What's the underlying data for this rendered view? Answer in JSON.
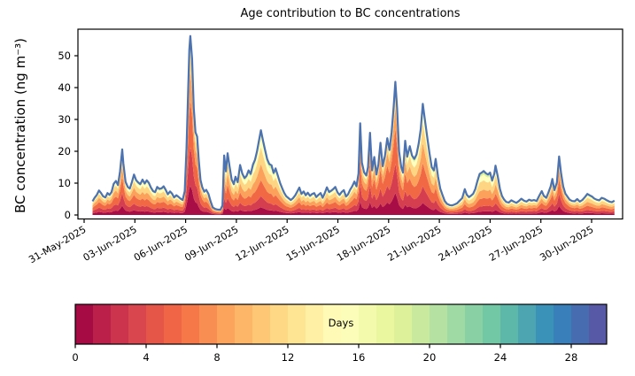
{
  "chart_data": {
    "type": "area",
    "title": "Age contribution to BC concentrations",
    "xlabel": "",
    "ylabel": "BC concentration (ng m⁻³)",
    "x_axis": {
      "unit": "days since 31-May-2025 00:00",
      "range_days": [
        -0.37,
        31.83
      ],
      "ticks": [
        {
          "day": 0,
          "label": "31-May-2025"
        },
        {
          "day": 3,
          "label": "03-Jun-2025"
        },
        {
          "day": 6,
          "label": "06-Jun-2025"
        },
        {
          "day": 9,
          "label": "09-Jun-2025"
        },
        {
          "day": 12,
          "label": "12-Jun-2025"
        },
        {
          "day": 15,
          "label": "15-Jun-2025"
        },
        {
          "day": 18,
          "label": "18-Jun-2025"
        },
        {
          "day": 21,
          "label": "21-Jun-2025"
        },
        {
          "day": 24,
          "label": "24-Jun-2025"
        },
        {
          "day": 27,
          "label": "27-Jun-2025"
        },
        {
          "day": 30,
          "label": "30-Jun-2025"
        }
      ]
    },
    "y_axis": {
      "ticks": [
        0,
        10,
        20,
        30,
        40,
        50
      ],
      "ylim": [
        -1.25,
        58.3
      ],
      "grid": false
    },
    "total_line": {
      "name": "total BC concentration",
      "color": "#4c72b0",
      "points": [
        [
          0.5,
          4.3
        ],
        [
          0.62,
          5.4
        ],
        [
          0.75,
          6.3
        ],
        [
          0.88,
          7.7
        ],
        [
          1.0,
          6.9
        ],
        [
          1.12,
          5.9
        ],
        [
          1.25,
          5.5
        ],
        [
          1.38,
          6.9
        ],
        [
          1.5,
          6.3
        ],
        [
          1.62,
          7.2
        ],
        [
          1.75,
          9.8
        ],
        [
          1.88,
          10.7
        ],
        [
          2.0,
          9.4
        ],
        [
          2.12,
          13.6
        ],
        [
          2.25,
          20.6
        ],
        [
          2.32,
          16.2
        ],
        [
          2.45,
          10.4
        ],
        [
          2.58,
          8.8
        ],
        [
          2.7,
          8.3
        ],
        [
          2.82,
          10.3
        ],
        [
          2.95,
          12.7
        ],
        [
          3.08,
          10.9
        ],
        [
          3.2,
          10.2
        ],
        [
          3.32,
          9.7
        ],
        [
          3.45,
          11.1
        ],
        [
          3.58,
          9.9
        ],
        [
          3.7,
          10.9
        ],
        [
          3.82,
          10.1
        ],
        [
          3.95,
          8.6
        ],
        [
          4.08,
          7.5
        ],
        [
          4.2,
          7.2
        ],
        [
          4.32,
          8.8
        ],
        [
          4.45,
          8.2
        ],
        [
          4.58,
          8.4
        ],
        [
          4.7,
          9.0
        ],
        [
          4.82,
          7.9
        ],
        [
          4.95,
          6.5
        ],
        [
          5.08,
          7.4
        ],
        [
          5.2,
          6.7
        ],
        [
          5.32,
          5.5
        ],
        [
          5.45,
          6.2
        ],
        [
          5.58,
          5.7
        ],
        [
          5.7,
          5.1
        ],
        [
          5.82,
          4.7
        ],
        [
          5.95,
          7.5
        ],
        [
          6.05,
          21.0
        ],
        [
          6.15,
          39.5
        ],
        [
          6.22,
          52.0
        ],
        [
          6.28,
          56.2
        ],
        [
          6.38,
          49.0
        ],
        [
          6.48,
          33.5
        ],
        [
          6.58,
          26.0
        ],
        [
          6.68,
          24.6
        ],
        [
          6.78,
          17.0
        ],
        [
          6.88,
          11.0
        ],
        [
          6.98,
          8.8
        ],
        [
          7.1,
          7.3
        ],
        [
          7.22,
          7.9
        ],
        [
          7.35,
          6.6
        ],
        [
          7.48,
          4.2
        ],
        [
          7.6,
          2.4
        ],
        [
          7.75,
          1.9
        ],
        [
          7.9,
          1.7
        ],
        [
          8.05,
          1.6
        ],
        [
          8.18,
          3.0
        ],
        [
          8.28,
          18.7
        ],
        [
          8.38,
          13.7
        ],
        [
          8.48,
          19.4
        ],
        [
          8.6,
          15.1
        ],
        [
          8.72,
          11.1
        ],
        [
          8.85,
          9.7
        ],
        [
          8.95,
          12.0
        ],
        [
          9.08,
          10.3
        ],
        [
          9.22,
          15.7
        ],
        [
          9.35,
          13.0
        ],
        [
          9.48,
          11.6
        ],
        [
          9.6,
          12.3
        ],
        [
          9.72,
          14.0
        ],
        [
          9.85,
          12.9
        ],
        [
          9.98,
          15.8
        ],
        [
          10.1,
          17.3
        ],
        [
          10.22,
          20.0
        ],
        [
          10.35,
          23.8
        ],
        [
          10.45,
          26.6
        ],
        [
          10.58,
          23.2
        ],
        [
          10.7,
          20.3
        ],
        [
          10.82,
          17.5
        ],
        [
          10.95,
          16.0
        ],
        [
          11.08,
          15.6
        ],
        [
          11.2,
          13.2
        ],
        [
          11.32,
          14.6
        ],
        [
          11.45,
          12.4
        ],
        [
          11.58,
          10.1
        ],
        [
          11.7,
          8.5
        ],
        [
          11.82,
          7.0
        ],
        [
          11.95,
          5.9
        ],
        [
          12.08,
          5.3
        ],
        [
          12.22,
          4.7
        ],
        [
          12.35,
          5.3
        ],
        [
          12.48,
          6.2
        ],
        [
          12.6,
          7.4
        ],
        [
          12.72,
          8.6
        ],
        [
          12.85,
          6.6
        ],
        [
          12.98,
          7.4
        ],
        [
          13.1,
          6.2
        ],
        [
          13.22,
          7.0
        ],
        [
          13.35,
          6.0
        ],
        [
          13.48,
          6.6
        ],
        [
          13.6,
          6.9
        ],
        [
          13.72,
          5.6
        ],
        [
          13.85,
          6.3
        ],
        [
          13.98,
          6.9
        ],
        [
          14.1,
          5.4
        ],
        [
          14.22,
          6.8
        ],
        [
          14.35,
          8.7
        ],
        [
          14.48,
          7.2
        ],
        [
          14.6,
          7.6
        ],
        [
          14.72,
          8.1
        ],
        [
          14.85,
          8.8
        ],
        [
          14.98,
          7.1
        ],
        [
          15.1,
          6.3
        ],
        [
          15.22,
          7.2
        ],
        [
          15.35,
          7.8
        ],
        [
          15.48,
          5.8
        ],
        [
          15.6,
          6.5
        ],
        [
          15.72,
          7.9
        ],
        [
          15.85,
          9.0
        ],
        [
          15.98,
          10.5
        ],
        [
          16.1,
          9.0
        ],
        [
          16.22,
          13.0
        ],
        [
          16.32,
          28.8
        ],
        [
          16.42,
          16.5
        ],
        [
          16.55,
          13.4
        ],
        [
          16.68,
          12.4
        ],
        [
          16.78,
          15.0
        ],
        [
          16.9,
          25.8
        ],
        [
          17.02,
          14.0
        ],
        [
          17.15,
          18.2
        ],
        [
          17.28,
          12.7
        ],
        [
          17.4,
          16.0
        ],
        [
          17.52,
          22.7
        ],
        [
          17.65,
          15.3
        ],
        [
          17.78,
          18.5
        ],
        [
          17.92,
          24.1
        ],
        [
          18.05,
          20.4
        ],
        [
          18.18,
          26.0
        ],
        [
          18.3,
          34.0
        ],
        [
          18.4,
          41.8
        ],
        [
          18.5,
          33.5
        ],
        [
          18.62,
          20.0
        ],
        [
          18.75,
          15.0
        ],
        [
          18.85,
          13.3
        ],
        [
          18.98,
          23.3
        ],
        [
          19.1,
          18.3
        ],
        [
          19.25,
          21.6
        ],
        [
          19.38,
          18.7
        ],
        [
          19.52,
          17.6
        ],
        [
          19.65,
          19.0
        ],
        [
          19.78,
          22.5
        ],
        [
          19.9,
          27.0
        ],
        [
          20.02,
          34.9
        ],
        [
          20.15,
          29.6
        ],
        [
          20.28,
          24.7
        ],
        [
          20.42,
          19.3
        ],
        [
          20.55,
          15.0
        ],
        [
          20.68,
          14.0
        ],
        [
          20.78,
          17.6
        ],
        [
          20.92,
          12.1
        ],
        [
          21.05,
          8.3
        ],
        [
          21.18,
          6.4
        ],
        [
          21.32,
          4.4
        ],
        [
          21.45,
          3.5
        ],
        [
          21.6,
          3.1
        ],
        [
          21.75,
          3.0
        ],
        [
          21.9,
          3.3
        ],
        [
          22.05,
          3.7
        ],
        [
          22.2,
          4.5
        ],
        [
          22.35,
          5.3
        ],
        [
          22.5,
          8.1
        ],
        [
          22.62,
          6.4
        ],
        [
          22.75,
          5.6
        ],
        [
          22.88,
          6.1
        ],
        [
          23.0,
          6.7
        ],
        [
          23.12,
          8.1
        ],
        [
          23.25,
          10.7
        ],
        [
          23.38,
          12.9
        ],
        [
          23.5,
          13.3
        ],
        [
          23.62,
          13.8
        ],
        [
          23.75,
          13.1
        ],
        [
          23.88,
          12.7
        ],
        [
          24.0,
          13.3
        ],
        [
          24.12,
          10.8
        ],
        [
          24.25,
          13.0
        ],
        [
          24.32,
          15.5
        ],
        [
          24.45,
          12.2
        ],
        [
          24.58,
          8.2
        ],
        [
          24.7,
          6.0
        ],
        [
          24.82,
          4.9
        ],
        [
          24.95,
          4.1
        ],
        [
          25.1,
          3.9
        ],
        [
          25.25,
          4.6
        ],
        [
          25.4,
          4.2
        ],
        [
          25.55,
          3.8
        ],
        [
          25.7,
          4.4
        ],
        [
          25.85,
          5.1
        ],
        [
          26.0,
          4.5
        ],
        [
          26.15,
          4.2
        ],
        [
          26.3,
          4.8
        ],
        [
          26.45,
          4.5
        ],
        [
          26.6,
          4.7
        ],
        [
          26.75,
          4.4
        ],
        [
          26.9,
          6.0
        ],
        [
          27.05,
          7.5
        ],
        [
          27.18,
          6.0
        ],
        [
          27.32,
          5.4
        ],
        [
          27.45,
          7.1
        ],
        [
          27.58,
          9.0
        ],
        [
          27.68,
          11.3
        ],
        [
          27.8,
          7.8
        ],
        [
          27.95,
          10.2
        ],
        [
          28.08,
          18.4
        ],
        [
          28.2,
          13.0
        ],
        [
          28.32,
          9.0
        ],
        [
          28.45,
          6.7
        ],
        [
          28.58,
          5.7
        ],
        [
          28.7,
          4.8
        ],
        [
          28.85,
          4.4
        ],
        [
          29.0,
          4.3
        ],
        [
          29.15,
          5.0
        ],
        [
          29.3,
          4.2
        ],
        [
          29.45,
          4.7
        ],
        [
          29.6,
          5.6
        ],
        [
          29.75,
          6.6
        ],
        [
          29.88,
          6.2
        ],
        [
          30.02,
          5.8
        ],
        [
          30.15,
          5.2
        ],
        [
          30.3,
          4.8
        ],
        [
          30.45,
          4.6
        ],
        [
          30.6,
          5.4
        ],
        [
          30.75,
          5.1
        ],
        [
          30.9,
          4.6
        ],
        [
          31.05,
          4.2
        ],
        [
          31.2,
          4.0
        ],
        [
          31.35,
          4.5
        ]
      ]
    },
    "age_stack": {
      "description": "stacked fill under total line, colored by particle age (days), youngest at bottom",
      "band_ages_days": [
        0.5,
        2.5,
        4.5,
        7.5,
        10.5,
        14,
        18,
        21.5
      ],
      "band_colormap_positions": [
        0.02,
        0.1,
        0.19,
        0.28,
        0.38,
        0.5,
        0.62,
        0.72
      ],
      "fresh_profile": [
        0.2,
        0.26,
        0.3,
        0.15,
        0.06,
        0.02,
        0.008,
        0.002
      ],
      "aged_profile": [
        0.03,
        0.06,
        0.13,
        0.21,
        0.28,
        0.18,
        0.08,
        0.03
      ],
      "aging_index_breakpoints": [
        [
          0.5,
          0.45
        ],
        [
          1.8,
          0.42
        ],
        [
          2.25,
          0.34
        ],
        [
          2.9,
          0.48
        ],
        [
          3.6,
          0.55
        ],
        [
          4.7,
          0.55
        ],
        [
          5.8,
          0.45
        ],
        [
          6.05,
          0.3
        ],
        [
          6.28,
          0.22
        ],
        [
          6.7,
          0.3
        ],
        [
          7.2,
          0.42
        ],
        [
          8.05,
          0.5
        ],
        [
          8.4,
          0.5
        ],
        [
          9.3,
          0.58
        ],
        [
          10.3,
          0.65
        ],
        [
          11.3,
          0.62
        ],
        [
          12.2,
          0.52
        ],
        [
          13.0,
          0.55
        ],
        [
          14.5,
          0.56
        ],
        [
          15.9,
          0.48
        ],
        [
          16.32,
          0.3
        ],
        [
          17.0,
          0.26
        ],
        [
          17.9,
          0.22
        ],
        [
          18.4,
          0.2
        ],
        [
          18.9,
          0.35
        ],
        [
          19.6,
          0.5
        ],
        [
          20.1,
          0.55
        ],
        [
          21.0,
          0.5
        ],
        [
          21.7,
          0.55
        ],
        [
          22.5,
          0.62
        ],
        [
          23.5,
          0.7
        ],
        [
          24.32,
          0.6
        ],
        [
          24.9,
          0.58
        ],
        [
          25.8,
          0.6
        ],
        [
          26.8,
          0.5
        ],
        [
          27.4,
          0.4
        ],
        [
          28.08,
          0.28
        ],
        [
          28.6,
          0.4
        ],
        [
          29.3,
          0.55
        ],
        [
          29.9,
          0.6
        ],
        [
          30.6,
          0.58
        ],
        [
          31.35,
          0.55
        ]
      ]
    },
    "colorbar": {
      "label": "Days",
      "min": 0,
      "max": 30,
      "n_segments": 30,
      "ticks": [
        0,
        4,
        8,
        12,
        16,
        20,
        24,
        28
      ],
      "colormap_name_visual": "Spectral (dark red → orange → yellow → green → blue)",
      "colormap_anchors": [
        [
          0.0,
          "#9e0142"
        ],
        [
          0.1,
          "#d53e4f"
        ],
        [
          0.2,
          "#f46d43"
        ],
        [
          0.3,
          "#fdae61"
        ],
        [
          0.4,
          "#fee08b"
        ],
        [
          0.5,
          "#ffffbf"
        ],
        [
          0.6,
          "#e6f598"
        ],
        [
          0.7,
          "#abdda4"
        ],
        [
          0.8,
          "#66c2a5"
        ],
        [
          0.9,
          "#3288bd"
        ],
        [
          1.0,
          "#5e4fa2"
        ]
      ]
    },
    "colors": {
      "axis": "#000000",
      "background": "#ffffff",
      "tick_label": "#000000"
    }
  }
}
